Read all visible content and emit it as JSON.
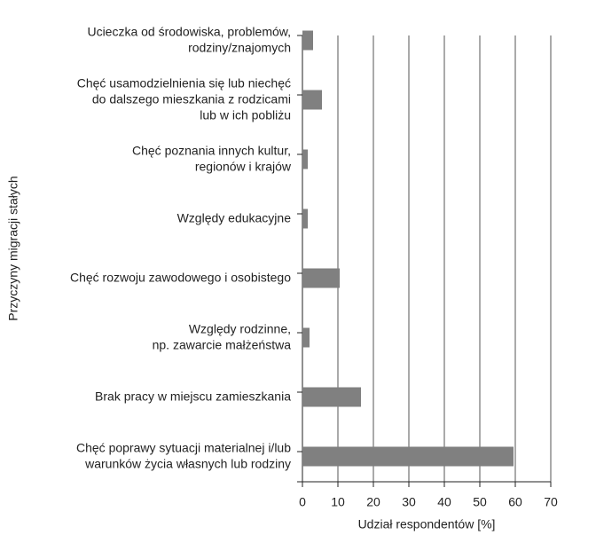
{
  "chart_data": {
    "type": "barh",
    "x_label": "Udział respondentów [%]",
    "y_label": "Przyczyny migracji stałych",
    "categories": [
      [
        "Ucieczka od środowiska, problemów,",
        "rodziny/znajomych"
      ],
      [
        "Chęć usamodzielnienia się lub niechęć",
        "do dalszego mieszkania z rodzicami",
        "lub w ich pobliżu"
      ],
      [
        "Chęć poznania innych kultur,",
        "regionów i krajów"
      ],
      [
        "Względy edukacyjne"
      ],
      [
        "Chęć rozwoju zawodowego i osobistego"
      ],
      [
        "Względy rodzinne,",
        "np. zawarcie małżeństwa"
      ],
      [
        "Brak pracy w miejscu zamieszkania"
      ],
      [
        "Chęć poprawy sytuacji materialnej i/lub",
        "warunków życia własnych lub rodziny"
      ]
    ],
    "values": [
      3,
      5.5,
      1.5,
      1.5,
      10.5,
      2,
      16.5,
      59.5
    ],
    "color": "#808080",
    "xlim": [
      0,
      70
    ],
    "xticks": [
      0,
      10,
      20,
      30,
      40,
      50,
      60,
      70
    ],
    "grid": true
  }
}
